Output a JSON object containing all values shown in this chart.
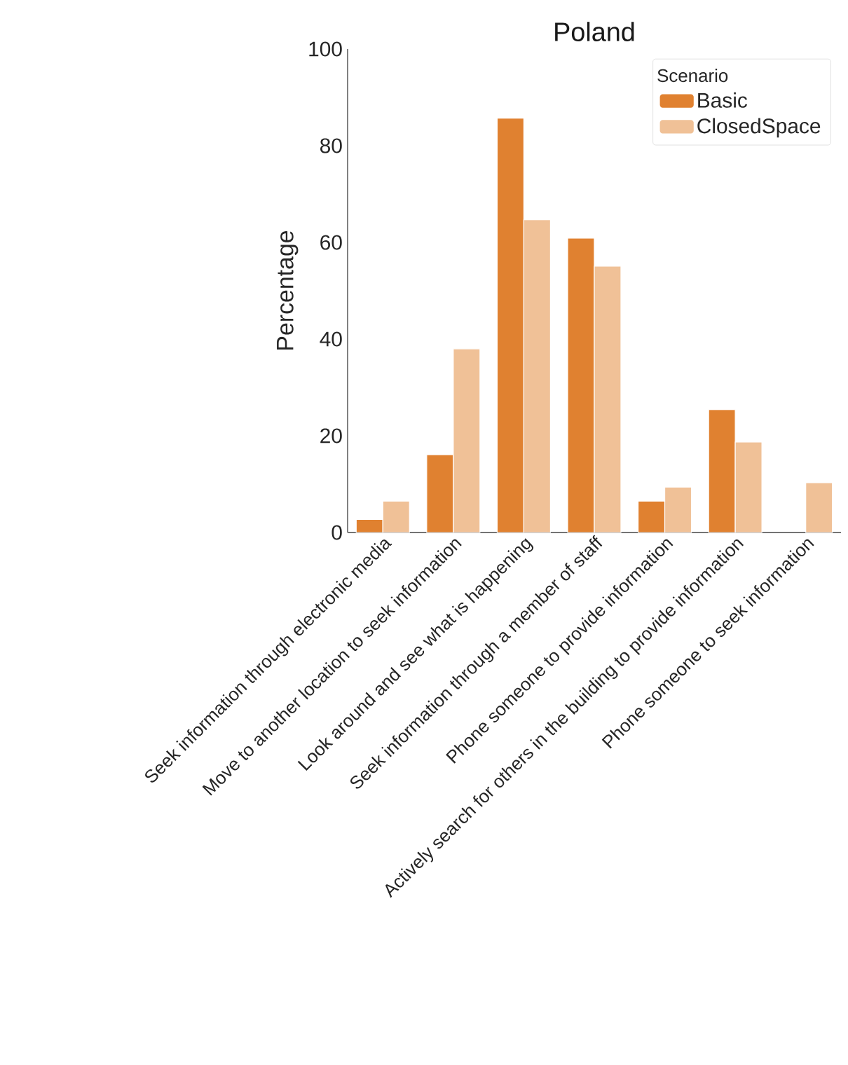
{
  "chart_data": {
    "type": "bar",
    "title": "Poland",
    "ylabel": "Percentage",
    "legend_title": "Scenario",
    "legend": "top right",
    "categories": [
      "Seek information through electronic media",
      "Move to another location to seek information",
      "Look around and see what is happening",
      "Seek information through a member of staff",
      "Phone someone to provide information",
      "Actively search for others in the building to provide information",
      "Phone someone to seek information"
    ],
    "series": [
      {
        "name": "Basic",
        "color": "#e08130",
        "values": [
          2.7,
          16.1,
          85.7,
          60.9,
          6.5,
          25.4,
          null
        ]
      },
      {
        "name": "ClosedSpace",
        "color": "#f0c197",
        "values": [
          6.5,
          38.0,
          64.7,
          55.1,
          9.4,
          18.7,
          10.3
        ]
      }
    ],
    "ylim": [
      0,
      100
    ],
    "yticks": [
      0,
      20,
      40,
      60,
      80,
      100
    ],
    "grid": false
  }
}
